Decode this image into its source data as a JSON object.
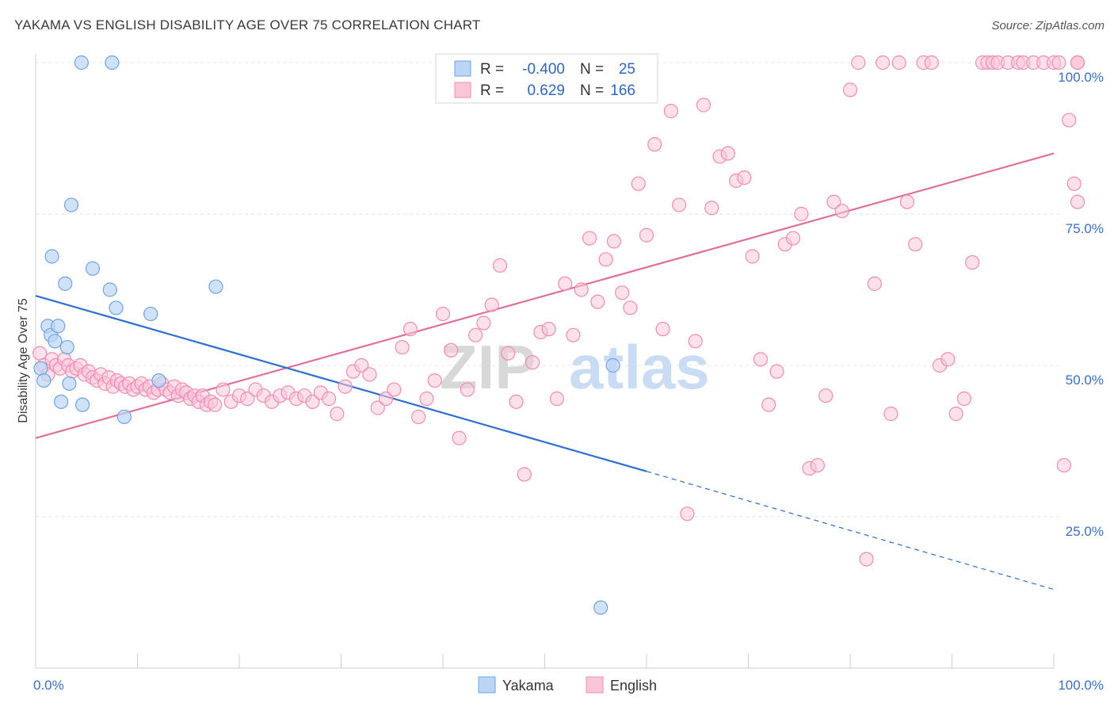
{
  "title": "YAKAMA VS ENGLISH DISABILITY AGE OVER 75 CORRELATION CHART",
  "source": "Source: ZipAtlas.com",
  "watermark": {
    "zip": "ZIP",
    "atlas": "atlas"
  },
  "colors": {
    "yakama": "#6fa3e6",
    "yakama_fill": "#bcd5f5",
    "english": "#f08cb0",
    "english_fill": "#f9c6d8",
    "yakama_line": "#2f6fd0",
    "english_line": "#e0709a"
  },
  "legend": {
    "rows": [
      {
        "r_label": "R =",
        "r_value": "-0.400",
        "n_label": "N =",
        "n_value": "25"
      },
      {
        "r_label": "R =",
        "r_value": "0.629",
        "n_label": "N =",
        "n_value": "166"
      }
    ]
  },
  "chart_data": {
    "type": "scatter",
    "xlabel": "",
    "ylabel": "Disability Age Over 75",
    "xlim": [
      0,
      100
    ],
    "ylim": [
      0,
      102
    ],
    "x_tick_labels": [
      "0.0%",
      "100.0%"
    ],
    "y_tick_labels": [
      "25.0%",
      "50.0%",
      "75.0%",
      "100.0%"
    ],
    "y_ticks": [
      25,
      50,
      75,
      100
    ],
    "grid": true,
    "legend_position": "top-center",
    "series": [
      {
        "name": "Yakama",
        "r": -0.4,
        "n": 25,
        "trend": {
          "x0": 0,
          "y0": 61.5,
          "x1": 60,
          "y1": 32.5,
          "dash_to_x": 100,
          "dash_to_y": 13
        },
        "points": [
          [
            0.5,
            49.5
          ],
          [
            0.8,
            47.5
          ],
          [
            1.2,
            56.5
          ],
          [
            1.5,
            55
          ],
          [
            1.6,
            68
          ],
          [
            1.9,
            54
          ],
          [
            2.2,
            56.5
          ],
          [
            2.5,
            44
          ],
          [
            2.9,
            63.5
          ],
          [
            3.1,
            53
          ],
          [
            3.3,
            47
          ],
          [
            3.5,
            76.5
          ],
          [
            4.5,
            100
          ],
          [
            4.6,
            43.5
          ],
          [
            5.6,
            66
          ],
          [
            7.5,
            100
          ],
          [
            7.3,
            62.5
          ],
          [
            7.9,
            59.5
          ],
          [
            8.7,
            41.5
          ],
          [
            11.3,
            58.5
          ],
          [
            12.1,
            47.5
          ],
          [
            17.7,
            63
          ],
          [
            56.7,
            50
          ],
          [
            55.5,
            10
          ]
        ]
      },
      {
        "name": "English",
        "r": 0.629,
        "n": 166,
        "trend": {
          "x0": 0,
          "y0": 38,
          "x1": 100,
          "y1": 85
        },
        "points": [
          [
            0.4,
            52
          ],
          [
            0.8,
            50
          ],
          [
            1.2,
            48.5
          ],
          [
            1.6,
            51
          ],
          [
            2.0,
            50
          ],
          [
            2.4,
            49.5
          ],
          [
            2.8,
            51
          ],
          [
            3.2,
            50
          ],
          [
            3.6,
            49
          ],
          [
            4.0,
            49.5
          ],
          [
            4.4,
            50
          ],
          [
            4.8,
            48.5
          ],
          [
            5.2,
            49
          ],
          [
            5.6,
            48
          ],
          [
            6.0,
            47.5
          ],
          [
            6.4,
            48.5
          ],
          [
            6.8,
            47
          ],
          [
            7.2,
            48
          ],
          [
            7.6,
            46.5
          ],
          [
            8.0,
            47.5
          ],
          [
            8.4,
            47
          ],
          [
            8.8,
            46.5
          ],
          [
            9.2,
            47
          ],
          [
            9.6,
            46
          ],
          [
            10.0,
            46.5
          ],
          [
            10.4,
            47
          ],
          [
            10.8,
            46
          ],
          [
            11.2,
            46.5
          ],
          [
            11.6,
            45.5
          ],
          [
            12.0,
            46
          ],
          [
            12.4,
            47
          ],
          [
            12.8,
            46
          ],
          [
            13.2,
            45.5
          ],
          [
            13.6,
            46.5
          ],
          [
            14.0,
            45
          ],
          [
            14.4,
            46
          ],
          [
            14.8,
            45.5
          ],
          [
            15.2,
            44.5
          ],
          [
            15.6,
            45
          ],
          [
            16.0,
            44
          ],
          [
            16.4,
            45
          ],
          [
            16.8,
            43.5
          ],
          [
            17.2,
            44
          ],
          [
            17.6,
            43.5
          ],
          [
            18.4,
            46
          ],
          [
            19.2,
            44
          ],
          [
            20.0,
            45
          ],
          [
            20.8,
            44.5
          ],
          [
            21.6,
            46
          ],
          [
            22.4,
            45
          ],
          [
            23.2,
            44
          ],
          [
            24.0,
            45
          ],
          [
            24.8,
            45.5
          ],
          [
            25.6,
            44.5
          ],
          [
            26.4,
            45
          ],
          [
            27.2,
            44
          ],
          [
            28.0,
            45.5
          ],
          [
            28.8,
            44.5
          ],
          [
            29.6,
            42
          ],
          [
            30.4,
            46.5
          ],
          [
            31.2,
            49
          ],
          [
            32.0,
            50
          ],
          [
            32.8,
            48.5
          ],
          [
            33.6,
            43
          ],
          [
            34.4,
            44.5
          ],
          [
            35.2,
            46
          ],
          [
            36.0,
            53
          ],
          [
            36.8,
            56
          ],
          [
            37.6,
            41.5
          ],
          [
            38.4,
            44.5
          ],
          [
            39.2,
            47.5
          ],
          [
            40.0,
            58.5
          ],
          [
            40.8,
            52.5
          ],
          [
            41.6,
            38
          ],
          [
            42.4,
            46
          ],
          [
            43.2,
            55
          ],
          [
            44.0,
            57
          ],
          [
            44.8,
            60
          ],
          [
            45.6,
            66.5
          ],
          [
            46.4,
            52
          ],
          [
            47.2,
            44
          ],
          [
            48.0,
            32
          ],
          [
            48.8,
            50.5
          ],
          [
            49.6,
            55.5
          ],
          [
            50.4,
            56
          ],
          [
            51.2,
            44.5
          ],
          [
            52.0,
            63.5
          ],
          [
            52.8,
            55
          ],
          [
            53.6,
            62.5
          ],
          [
            54.4,
            71
          ],
          [
            55.2,
            60.5
          ],
          [
            56.0,
            67.5
          ],
          [
            56.8,
            70.5
          ],
          [
            57.6,
            62
          ],
          [
            58.4,
            59.5
          ],
          [
            59.2,
            80
          ],
          [
            60.0,
            71.5
          ],
          [
            60.8,
            86.5
          ],
          [
            61.6,
            56
          ],
          [
            62.4,
            92
          ],
          [
            63.2,
            76.5
          ],
          [
            64.0,
            25.5
          ],
          [
            64.8,
            54
          ],
          [
            65.6,
            93
          ],
          [
            66.4,
            76
          ],
          [
            67.2,
            84.5
          ],
          [
            68.0,
            85
          ],
          [
            68.8,
            80.5
          ],
          [
            69.6,
            81
          ],
          [
            70.4,
            68
          ],
          [
            71.2,
            51
          ],
          [
            72.0,
            43.5
          ],
          [
            72.8,
            49
          ],
          [
            73.6,
            70
          ],
          [
            74.4,
            71
          ],
          [
            75.2,
            75
          ],
          [
            76.0,
            33
          ],
          [
            76.8,
            33.5
          ],
          [
            77.6,
            45
          ],
          [
            78.4,
            77
          ],
          [
            79.2,
            75.5
          ],
          [
            80.0,
            95.5
          ],
          [
            80.8,
            100
          ],
          [
            81.6,
            18
          ],
          [
            82.4,
            63.5
          ],
          [
            83.2,
            100
          ],
          [
            84.0,
            42
          ],
          [
            84.8,
            100
          ],
          [
            85.6,
            77
          ],
          [
            86.4,
            70
          ],
          [
            87.2,
            100
          ],
          [
            88.0,
            100
          ],
          [
            88.8,
            50
          ],
          [
            89.6,
            51
          ],
          [
            90.4,
            42
          ],
          [
            91.2,
            44.5
          ],
          [
            92.0,
            67
          ],
          [
            93.0,
            100
          ],
          [
            93.5,
            100
          ],
          [
            94.0,
            100
          ],
          [
            94.5,
            100
          ],
          [
            95.5,
            100
          ],
          [
            96.5,
            100
          ],
          [
            97.0,
            100
          ],
          [
            98.0,
            100
          ],
          [
            99.0,
            100
          ],
          [
            100.0,
            100
          ],
          [
            100.5,
            100
          ],
          [
            101.0,
            33.5
          ],
          [
            101.5,
            90.5
          ],
          [
            102.0,
            80
          ],
          [
            102.5,
            77
          ],
          [
            103.0,
            100
          ],
          [
            104.0,
            100
          ],
          [
            105.0,
            100
          ]
        ]
      }
    ]
  },
  "bottom_legend": [
    {
      "label": "Yakama"
    },
    {
      "label": "English"
    }
  ]
}
